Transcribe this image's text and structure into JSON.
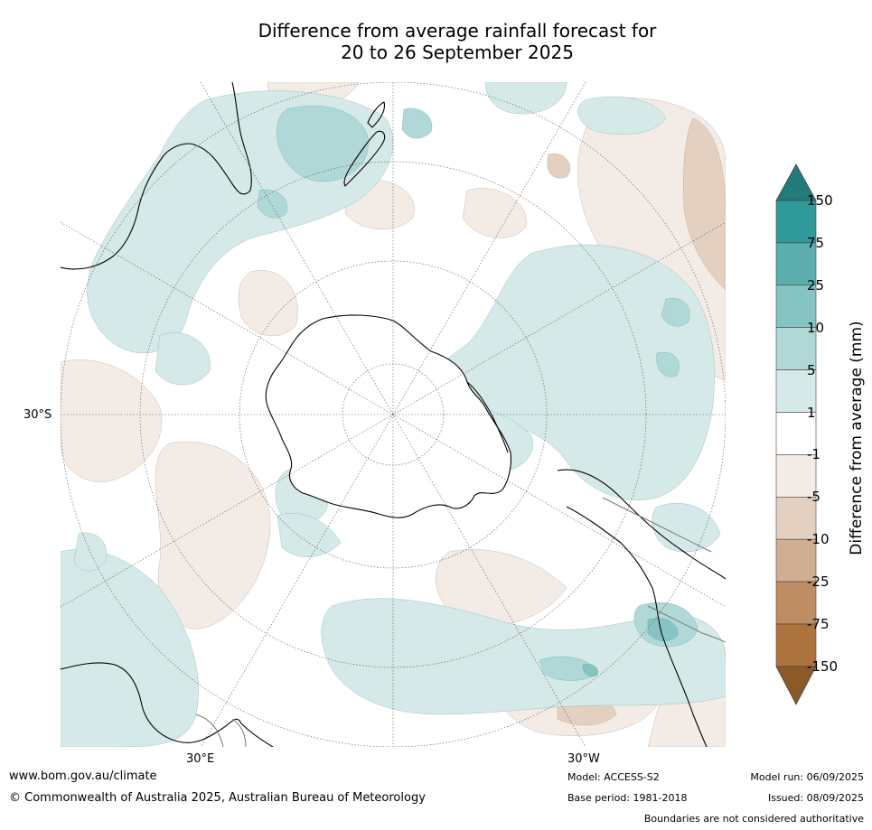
{
  "title": {
    "line1": "Difference from average rainfall forecast for",
    "line2": "20 to 26 September 2025"
  },
  "map": {
    "projection": "south-polar-stereographic",
    "lat_label": "30°S",
    "lon_labels": {
      "east": "30°E",
      "west": "30°W"
    },
    "features": [
      "Antarctica",
      "Australia",
      "New Zealand",
      "South America",
      "Southern Africa"
    ]
  },
  "legend": {
    "title": "Difference from average (mm)",
    "ticks": [
      "150",
      "75",
      "25",
      "10",
      "5",
      "1",
      "-1",
      "-5",
      "-10",
      "-25",
      "-75",
      "-150"
    ],
    "colors": [
      "#247a7a",
      "#2f9a99",
      "#5cadad",
      "#86c4c3",
      "#b0d8d7",
      "#d5e9e8",
      "#ffffff",
      "#f3ebe6",
      "#e3d0c1",
      "#d0ae92",
      "#be8d63",
      "#ad733f",
      "#8c5a28"
    ]
  },
  "footer": {
    "website": "www.bom.gov.au/climate",
    "copyright": "© Commonwealth of Australia 2025, Australian Bureau of Meteorology",
    "model": "Model: ACCESS-S2",
    "base_period": "Base period: 1981-2018",
    "model_run": "Model run: 06/09/2025",
    "issued": "Issued: 08/09/2025",
    "disclaimer": "Boundaries are not considered authoritative"
  }
}
